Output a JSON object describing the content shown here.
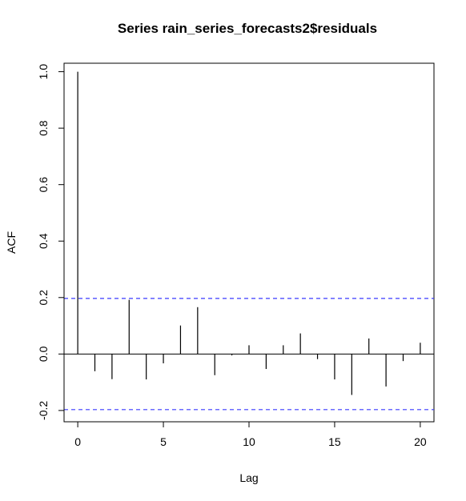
{
  "chart_data": {
    "type": "bar",
    "title": "Series  rain_series_forecasts2$residuals",
    "xlabel": "Lag",
    "ylabel": "ACF",
    "xlim": [
      -0.8,
      20.8
    ],
    "ylim": [
      -0.24,
      1.03
    ],
    "x_ticks": [
      0,
      5,
      10,
      15,
      20
    ],
    "y_ticks": [
      -0.2,
      0.0,
      0.2,
      0.4,
      0.6,
      0.8,
      1.0
    ],
    "x_tick_labels": [
      "0",
      "5",
      "10",
      "15",
      "20"
    ],
    "y_tick_labels": [
      "-0.2",
      "0.0",
      "0.2",
      "0.4",
      "0.6",
      "0.8",
      "1.0"
    ],
    "lags": [
      0,
      1,
      2,
      3,
      4,
      5,
      6,
      7,
      8,
      9,
      10,
      11,
      12,
      13,
      14,
      15,
      16,
      17,
      18,
      19,
      20
    ],
    "values": [
      1.0,
      -0.061,
      -0.089,
      0.192,
      -0.09,
      -0.033,
      0.101,
      0.166,
      -0.075,
      -0.005,
      0.031,
      -0.053,
      0.031,
      0.073,
      -0.018,
      -0.09,
      -0.145,
      0.055,
      -0.115,
      -0.025,
      0.04
    ],
    "confidence_bound": 0.197,
    "bound_color": "#3a3aff",
    "grid": false,
    "legend": "none"
  }
}
